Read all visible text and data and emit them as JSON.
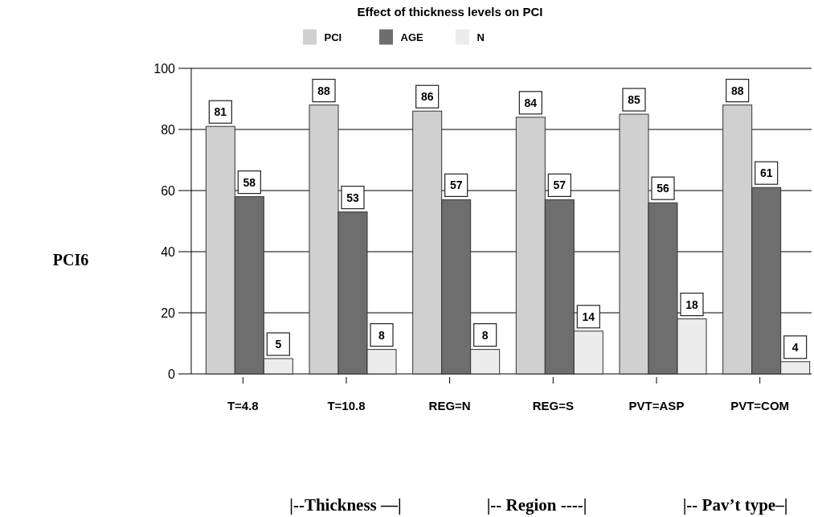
{
  "chart_data": {
    "type": "bar",
    "title": "Effect of thickness levels on PCI",
    "ylabel": "PCI6",
    "categories": [
      "T=4.8",
      "T=10.8",
      "REG=N",
      "REG=S",
      "PVT=ASP",
      "PVT=COM"
    ],
    "series": [
      {
        "name": "PCI",
        "color": "#d0d0d0",
        "values": [
          81,
          88,
          86,
          84,
          85,
          88
        ]
      },
      {
        "name": "AGE",
        "color": "#6e6e6e",
        "values": [
          58,
          53,
          57,
          57,
          56,
          61
        ]
      },
      {
        "name": "N",
        "color": "#ececec",
        "values": [
          5,
          8,
          8,
          14,
          18,
          4
        ]
      }
    ],
    "ylim": [
      0,
      100
    ],
    "yticks": [
      0,
      20,
      40,
      60,
      80,
      100
    ],
    "grid": "y",
    "legend": "top",
    "data_labels": true,
    "annotations": [
      "|--Thickness —|",
      "|-- Region ----|",
      "|-- Pav’t type–|"
    ]
  }
}
